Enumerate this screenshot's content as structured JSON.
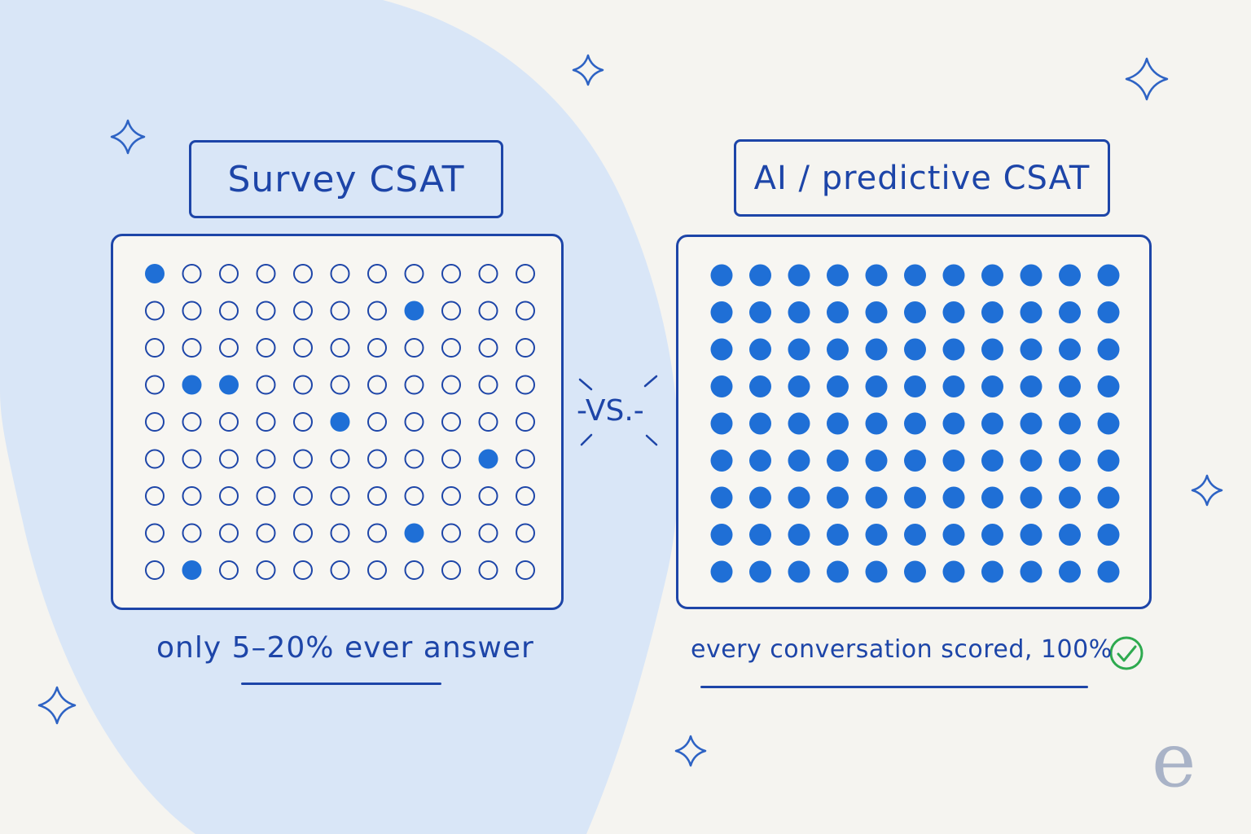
{
  "left_panel": {
    "title": "Survey CSAT",
    "caption_prefix": "only ",
    "caption_highlight": "5–20% ever answer",
    "rows": 9,
    "cols": 11,
    "filled_cells": [
      [
        0,
        0
      ],
      [
        1,
        7
      ],
      [
        3,
        1
      ],
      [
        3,
        2
      ],
      [
        4,
        5
      ],
      [
        5,
        9
      ],
      [
        7,
        7
      ],
      [
        8,
        1
      ]
    ]
  },
  "vs_label": "-VS.-",
  "right_panel": {
    "title": "AI / predictive CSAT",
    "caption": "every conversation scored, 100%",
    "rows": 9,
    "cols": 11,
    "filled_cells": "all",
    "check_icon": "check-circle-icon"
  },
  "logo_text": "e",
  "colors": {
    "accent": "#1d45a8",
    "dot": "#1f6fd6",
    "background": "#f5f4f0",
    "blob": "#d9e6f7",
    "check": "#2eaa4f",
    "logo": "#a9b3c7"
  },
  "icons": [
    "sparkle-icon",
    "check-circle-icon"
  ]
}
